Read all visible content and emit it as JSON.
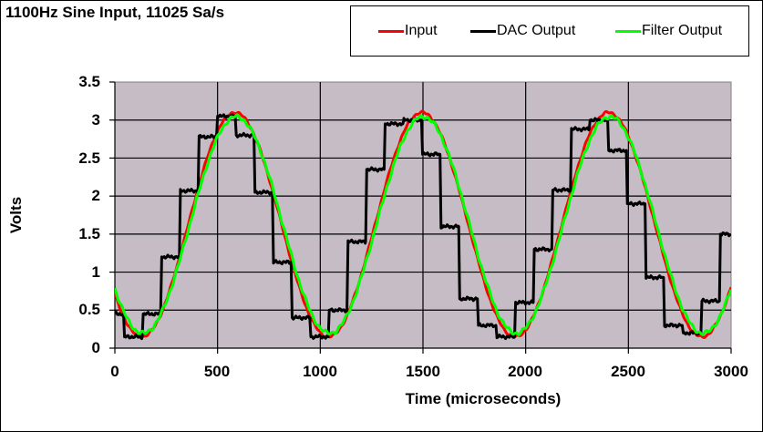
{
  "chart_data": {
    "type": "line",
    "title": "1100Hz Sine Input, 11025 Sa/s",
    "xlabel": "Time (microseconds)",
    "ylabel": "Volts",
    "xlim": [
      0,
      3000
    ],
    "ylim": [
      0,
      3.5
    ],
    "x_ticks": [
      "0",
      "500",
      "1000",
      "1500",
      "2000",
      "2500",
      "3000"
    ],
    "y_ticks": [
      "0",
      "0.5",
      "1",
      "1.5",
      "2",
      "2.5",
      "3",
      "3.5"
    ],
    "grid": true,
    "legend_position": "top-right",
    "plot_background": "#C6BCC6",
    "series": [
      {
        "name": "Input",
        "color": "#FF0000",
        "model": {
          "offset": 1.625,
          "amplitude": 1.475,
          "frequency_hz": 1100,
          "phase_rad": -2.4725
        },
        "x": [
          0,
          130,
          358,
          585,
          812,
          1039,
          1266,
          1494,
          1721,
          1948,
          2175,
          2403,
          2630,
          2857,
          3000
        ],
        "values": [
          0.71,
          0.15,
          1.63,
          3.1,
          1.63,
          0.15,
          1.63,
          3.1,
          1.63,
          0.15,
          1.63,
          3.1,
          1.63,
          0.15,
          1.0
        ]
      },
      {
        "name": "DAC Output",
        "color": "#000000",
        "sample_period_us": 90.7,
        "x": [
          0,
          43,
          134,
          224,
          315,
          406,
          496,
          587,
          678,
          768,
          859,
          950,
          1040,
          1131,
          1222,
          1312,
          1403,
          1494,
          1584,
          1675,
          1766,
          1856,
          1947,
          2038,
          2128,
          2219,
          2310,
          2400,
          2491,
          2582,
          2672,
          2763,
          2854,
          2944
        ],
        "values": [
          0.45,
          0.15,
          0.45,
          1.2,
          2.07,
          2.78,
          3.05,
          2.8,
          2.05,
          1.13,
          0.4,
          0.15,
          0.5,
          1.4,
          2.35,
          2.95,
          3.0,
          2.55,
          1.6,
          0.65,
          0.3,
          0.15,
          0.6,
          1.3,
          2.08,
          2.88,
          3.0,
          2.6,
          1.9,
          0.93,
          0.3,
          0.2,
          0.62,
          1.5
        ]
      },
      {
        "name": "Filter Output",
        "color": "#00FF00",
        "x": [
          0,
          130,
          358,
          585,
          812,
          1039,
          1266,
          1494,
          1721,
          1948,
          2175,
          2403,
          2630,
          2857,
          3000
        ],
        "values": [
          0.75,
          0.2,
          1.58,
          3.04,
          1.66,
          0.2,
          1.58,
          3.04,
          1.66,
          0.2,
          1.58,
          3.04,
          1.66,
          0.18,
          1.05
        ]
      }
    ]
  },
  "legend": {
    "items": [
      {
        "label": "Input",
        "color": "#FF0000"
      },
      {
        "label": "DAC Output",
        "color": "#000000"
      },
      {
        "label": "Filter Output",
        "color": "#00FF00"
      }
    ]
  }
}
